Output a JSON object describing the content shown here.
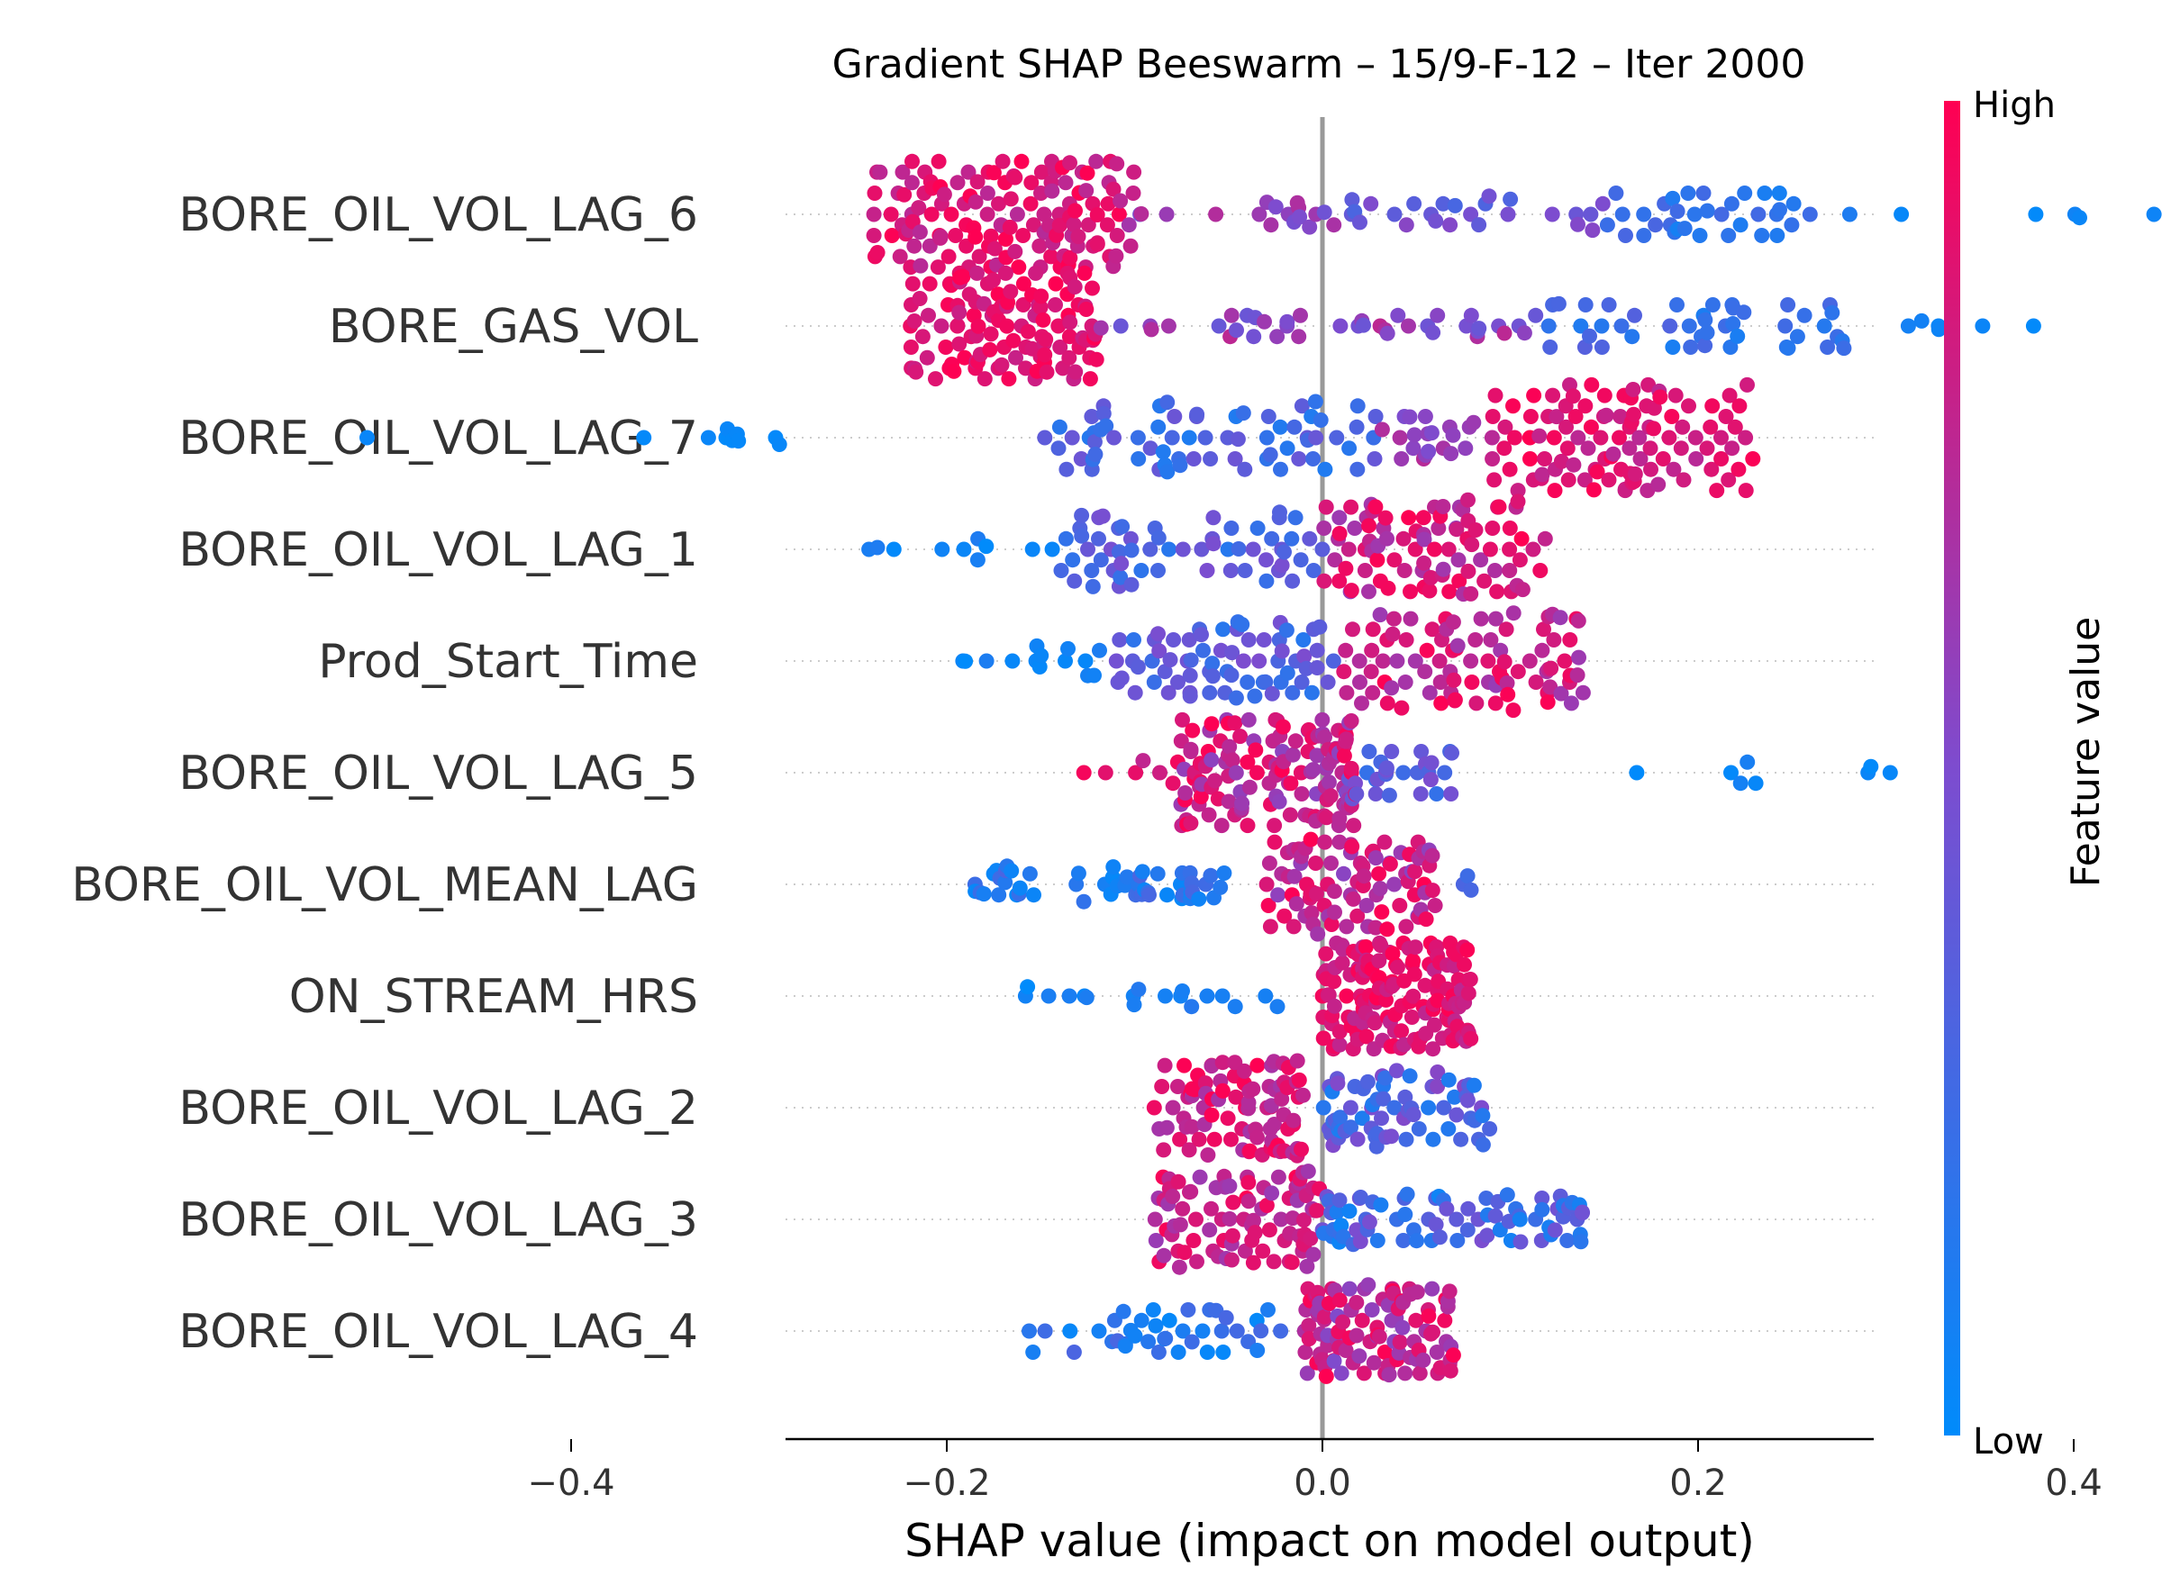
{
  "chart_data": {
    "type": "scatter",
    "subtype": "shap-beeswarm",
    "title": "Gradient SHAP Beeswarm – 15/9-F-12 – Iter 2000",
    "xlabel": "SHAP value (impact on model output)",
    "xlim": [
      -0.57,
      0.59
    ],
    "xticks": [
      -0.4,
      -0.2,
      0.0,
      0.2,
      0.4
    ],
    "xtick_labels": [
      "−0.4",
      "−0.2",
      "0.0",
      "0.2",
      "0.4"
    ],
    "zero_line": true,
    "grid": false,
    "colorbar": {
      "title": "Feature value",
      "high_label": "High",
      "low_label": "Low",
      "high_color": "#ff0052",
      "low_color": "#008bfb"
    },
    "features": [
      {
        "name": "BORE_OIL_VOL_LAG_6",
        "clusters": [
          {
            "min": -0.24,
            "max": -0.1,
            "n": 140,
            "vlo": 0.72,
            "vhi": 1.0,
            "spread": 1.0
          },
          {
            "min": -0.11,
            "max": 0.02,
            "n": 18,
            "vlo": 0.45,
            "vhi": 0.75,
            "spread": 0.3
          },
          {
            "min": 0.0,
            "max": 0.15,
            "n": 26,
            "vlo": 0.28,
            "vhi": 0.55,
            "spread": 0.35
          },
          {
            "min": 0.15,
            "max": 0.26,
            "n": 34,
            "vlo": 0.08,
            "vhi": 0.3,
            "spread": 0.5
          },
          {
            "min": 0.28,
            "max": 0.53,
            "n": 10,
            "vlo": 0.0,
            "vhi": 0.12,
            "spread": 0.1
          }
        ]
      },
      {
        "name": "BORE_GAS_VOL",
        "clusters": [
          {
            "min": -0.22,
            "max": -0.12,
            "n": 120,
            "vlo": 0.78,
            "vhi": 1.0,
            "spread": 1.0
          },
          {
            "min": -0.12,
            "max": 0.12,
            "n": 40,
            "vlo": 0.4,
            "vhi": 0.75,
            "spread": 0.25
          },
          {
            "min": 0.12,
            "max": 0.28,
            "n": 45,
            "vlo": 0.1,
            "vhi": 0.35,
            "spread": 0.45
          },
          {
            "min": 0.28,
            "max": 0.38,
            "n": 6,
            "vlo": 0.0,
            "vhi": 0.1,
            "spread": 0.1
          }
        ]
      },
      {
        "name": "BORE_OIL_VOL_LAG_7",
        "clusters": [
          {
            "min": -0.52,
            "max": -0.25,
            "n": 10,
            "vlo": 0.0,
            "vhi": 0.05,
            "spread": 0.2
          },
          {
            "min": -0.15,
            "max": 0.03,
            "n": 70,
            "vlo": 0.1,
            "vhi": 0.45,
            "spread": 0.7
          },
          {
            "min": 0.03,
            "max": 0.09,
            "n": 20,
            "vlo": 0.5,
            "vhi": 0.75,
            "spread": 0.4
          },
          {
            "min": 0.09,
            "max": 0.23,
            "n": 110,
            "vlo": 0.72,
            "vhi": 1.0,
            "spread": 1.0
          }
        ]
      },
      {
        "name": "BORE_OIL_VOL_LAG_1",
        "clusters": [
          {
            "min": -0.26,
            "max": -0.14,
            "n": 10,
            "vlo": 0.0,
            "vhi": 0.15,
            "spread": 0.2
          },
          {
            "min": -0.14,
            "max": 0.0,
            "n": 60,
            "vlo": 0.15,
            "vhi": 0.5,
            "spread": 0.75
          },
          {
            "min": 0.0,
            "max": 0.12,
            "n": 90,
            "vlo": 0.6,
            "vhi": 1.0,
            "spread": 0.95
          }
        ]
      },
      {
        "name": "Prod_Start_Time",
        "clusters": [
          {
            "min": -0.22,
            "max": -0.11,
            "n": 14,
            "vlo": 0.0,
            "vhi": 0.15,
            "spread": 0.3
          },
          {
            "min": -0.11,
            "max": 0.01,
            "n": 70,
            "vlo": 0.15,
            "vhi": 0.5,
            "spread": 0.75
          },
          {
            "min": 0.01,
            "max": 0.14,
            "n": 90,
            "vlo": 0.6,
            "vhi": 1.0,
            "spread": 0.95
          }
        ]
      },
      {
        "name": "BORE_OIL_VOL_LAG_5",
        "clusters": [
          {
            "min": -0.13,
            "max": -0.06,
            "n": 10,
            "vlo": 0.75,
            "vhi": 1.0,
            "spread": 0.3
          },
          {
            "min": -0.08,
            "max": 0.02,
            "n": 130,
            "vlo": 0.55,
            "vhi": 1.0,
            "spread": 1.0
          },
          {
            "min": 0.01,
            "max": 0.07,
            "n": 30,
            "vlo": 0.2,
            "vhi": 0.5,
            "spread": 0.5
          },
          {
            "min": 0.15,
            "max": 0.31,
            "n": 8,
            "vlo": 0.0,
            "vhi": 0.1,
            "spread": 0.25
          }
        ]
      },
      {
        "name": "BORE_OIL_VOL_MEAN_LAG",
        "clusters": [
          {
            "min": -0.19,
            "max": -0.05,
            "n": 55,
            "vlo": 0.0,
            "vhi": 0.3,
            "spread": 0.35
          },
          {
            "min": -0.03,
            "max": 0.06,
            "n": 90,
            "vlo": 0.55,
            "vhi": 1.0,
            "spread": 0.95
          },
          {
            "min": 0.06,
            "max": 0.08,
            "n": 3,
            "vlo": 0.2,
            "vhi": 0.3,
            "spread": 0.2
          }
        ]
      },
      {
        "name": "ON_STREAM_HRS",
        "clusters": [
          {
            "min": -0.16,
            "max": -0.02,
            "n": 18,
            "vlo": 0.0,
            "vhi": 0.15,
            "spread": 0.25
          },
          {
            "min": 0.0,
            "max": 0.08,
            "n": 150,
            "vlo": 0.75,
            "vhi": 1.0,
            "spread": 1.0
          }
        ]
      },
      {
        "name": "BORE_OIL_VOL_LAG_2",
        "clusters": [
          {
            "min": -0.09,
            "max": -0.01,
            "n": 90,
            "vlo": 0.65,
            "vhi": 1.0,
            "spread": 0.95
          },
          {
            "min": 0.0,
            "max": 0.09,
            "n": 70,
            "vlo": 0.1,
            "vhi": 0.55,
            "spread": 0.75
          }
        ]
      },
      {
        "name": "BORE_OIL_VOL_LAG_3",
        "clusters": [
          {
            "min": -0.09,
            "max": 0.0,
            "n": 90,
            "vlo": 0.6,
            "vhi": 1.0,
            "spread": 0.95
          },
          {
            "min": 0.0,
            "max": 0.14,
            "n": 80,
            "vlo": 0.05,
            "vhi": 0.5,
            "spread": 0.5
          }
        ]
      },
      {
        "name": "BORE_OIL_VOL_LAG_4",
        "clusters": [
          {
            "min": -0.16,
            "max": -0.02,
            "n": 40,
            "vlo": 0.0,
            "vhi": 0.3,
            "spread": 0.4
          },
          {
            "min": -0.01,
            "max": 0.07,
            "n": 110,
            "vlo": 0.5,
            "vhi": 1.0,
            "spread": 0.9
          }
        ]
      }
    ]
  }
}
